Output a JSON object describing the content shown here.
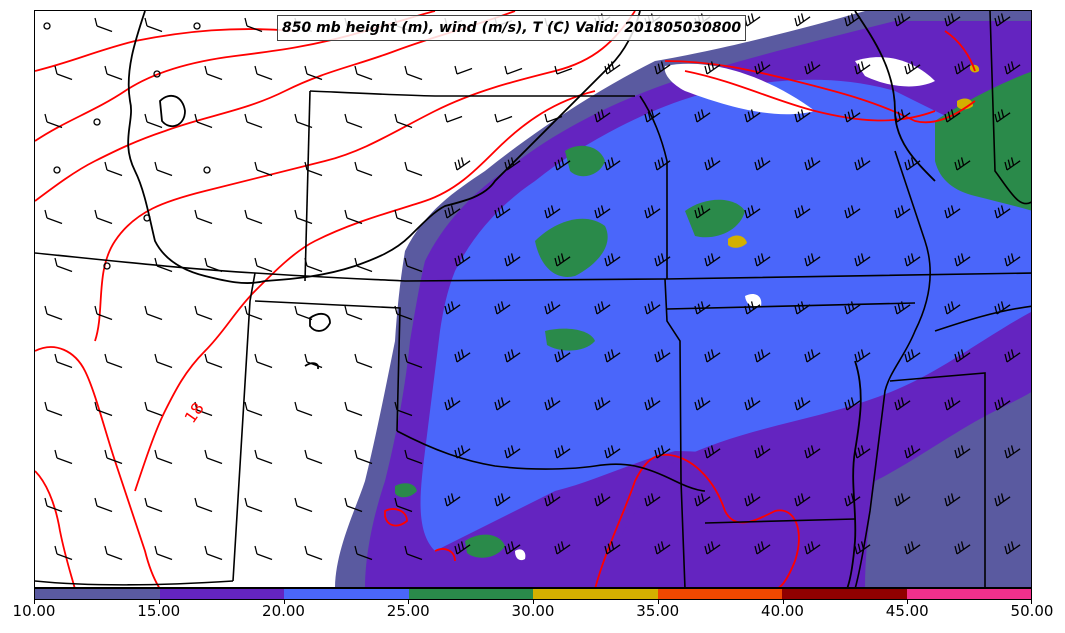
{
  "title": "850 mb height (m), wind (m/s), T (C) Valid: 201805030800",
  "contour_label": "18",
  "colorbar": {
    "bins": [
      {
        "from": "10.00",
        "to": "15.00",
        "color": "#5a5aa0"
      },
      {
        "from": "15.00",
        "to": "20.00",
        "color": "#6424c0"
      },
      {
        "from": "20.00",
        "to": "25.00",
        "color": "#4a66fa"
      },
      {
        "from": "25.00",
        "to": "30.00",
        "color": "#2a8a4a"
      },
      {
        "from": "30.00",
        "to": "35.00",
        "color": "#d4b000"
      },
      {
        "from": "35.00",
        "to": "40.00",
        "color": "#f04800"
      },
      {
        "from": "40.00",
        "to": "45.00",
        "color": "#900000"
      },
      {
        "from": "45.00",
        "to": "50.00",
        "color": "#f0308c"
      }
    ],
    "tick_labels": [
      "10.00",
      "15.00",
      "20.00",
      "25.00",
      "30.00",
      "35.00",
      "40.00",
      "45.00",
      "50.00"
    ]
  },
  "colors": {
    "temperature_contour": "#ff0000",
    "height_contour": "#000000",
    "state_borders": "#000000",
    "wind_barbs": "#000000"
  },
  "icons": {
    "wind_barb": "wind-barb-icon",
    "calm_wind": "calm-circle-icon"
  }
}
